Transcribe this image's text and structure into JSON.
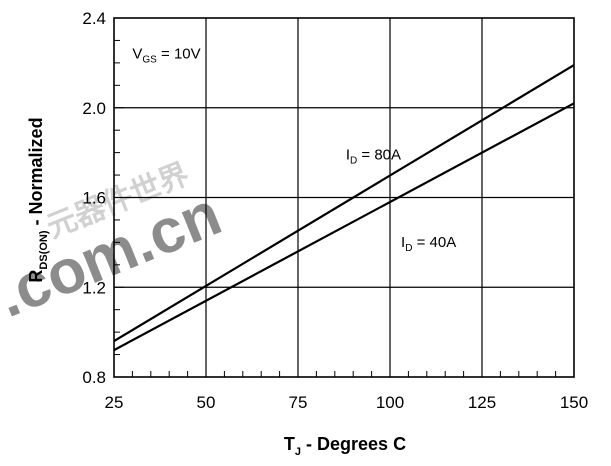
{
  "chart_data": {
    "type": "line",
    "x_axis": {
      "min": 25,
      "max": 150,
      "ticks": [
        25,
        50,
        75,
        100,
        125,
        150
      ],
      "tick_labels": [
        "25",
        "50",
        "75",
        "100",
        "125",
        "150"
      ],
      "title_main": "T",
      "title_sub": "J",
      "title_rest": " - Degrees C"
    },
    "y_axis": {
      "min": 0.8,
      "max": 2.4,
      "ticks": [
        0.8,
        1.2,
        1.6,
        2.0,
        2.4
      ],
      "tick_labels": [
        "0.8",
        "1.2",
        "1.6",
        "2.0",
        "2.4"
      ],
      "title_main": "R",
      "title_sub": "DS(ON)",
      "title_rest": " - Normalized"
    },
    "grid": true,
    "series": [
      {
        "name": "I_D = 80A",
        "x": [
          25,
          150
        ],
        "y": [
          0.96,
          2.19
        ]
      },
      {
        "name": "I_D = 40A",
        "x": [
          25,
          150
        ],
        "y": [
          0.92,
          2.02
        ]
      }
    ],
    "annotations": [
      {
        "id": "vgs",
        "main": "V",
        "sub": "GS",
        "rest": " = 10V",
        "x": 30,
        "y": 2.22
      },
      {
        "id": "id80",
        "main": "I",
        "sub": "D",
        "rest": " = 80A",
        "x": 88,
        "y": 1.77
      },
      {
        "id": "id40",
        "main": "I",
        "sub": "D",
        "rest": " = 40A",
        "x": 103,
        "y": 1.38
      }
    ]
  },
  "watermark": {
    "text": ".com.cn",
    "chars": "元器件世界",
    "color": "#ff1a1a"
  }
}
